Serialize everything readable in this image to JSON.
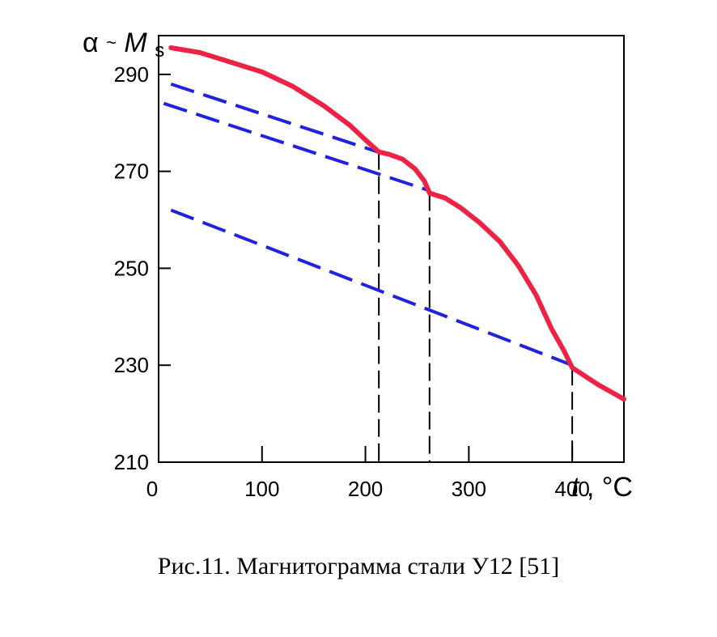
{
  "chart_data": {
    "type": "line",
    "ylabel_symbol": "α",
    "ylabel_tilde": "~",
    "ylabel_main": "M",
    "ylabel_sub": "s",
    "xlabel_var": "t",
    "xlabel_unit": ", °C",
    "xlim": [
      0,
      450
    ],
    "ylim": [
      210,
      298
    ],
    "x_ticks": [
      0,
      100,
      200,
      300,
      400
    ],
    "y_ticks": [
      210,
      230,
      250,
      270,
      290
    ],
    "colors": {
      "curve": "#ee2244",
      "dashed": "#2222dd",
      "guides": "#000000"
    },
    "series": [
      {
        "style": "solid",
        "color": "#ee2244",
        "points": [
          [
            12,
            295.5
          ],
          [
            40,
            294.5
          ],
          [
            70,
            292.5
          ],
          [
            100,
            290.5
          ],
          [
            130,
            287.5
          ],
          [
            160,
            283.5
          ],
          [
            185,
            279.5
          ],
          [
            200,
            276.5
          ],
          [
            213,
            274
          ],
          [
            223,
            273.5
          ],
          [
            236,
            272.5
          ],
          [
            248,
            270.5
          ],
          [
            257,
            268
          ],
          [
            262,
            265.5
          ],
          [
            277,
            264.5
          ],
          [
            292,
            262.5
          ],
          [
            310,
            259.5
          ],
          [
            330,
            255.5
          ],
          [
            348,
            250.5
          ],
          [
            365,
            244.5
          ],
          [
            380,
            237.5
          ],
          [
            392,
            233
          ],
          [
            400,
            229.5
          ],
          [
            425,
            226
          ],
          [
            450,
            223
          ]
        ]
      },
      {
        "style": "dashed",
        "color": "#2222dd",
        "points": [
          [
            12,
            288
          ],
          [
            212,
            274
          ]
        ]
      },
      {
        "style": "dashed",
        "color": "#2222dd",
        "points": [
          [
            5,
            284
          ],
          [
            262,
            266
          ]
        ]
      },
      {
        "style": "dashed",
        "color": "#2222dd",
        "points": [
          [
            12,
            262
          ],
          [
            400,
            230
          ]
        ]
      }
    ],
    "vertical_markers": [
      {
        "x": 213,
        "y_top": 274
      },
      {
        "x": 262,
        "y_top": 265.5
      },
      {
        "x": 400,
        "y_top": 229.5
      }
    ]
  },
  "caption": "Рис.11. Магнитограмма стали У12 [51]"
}
